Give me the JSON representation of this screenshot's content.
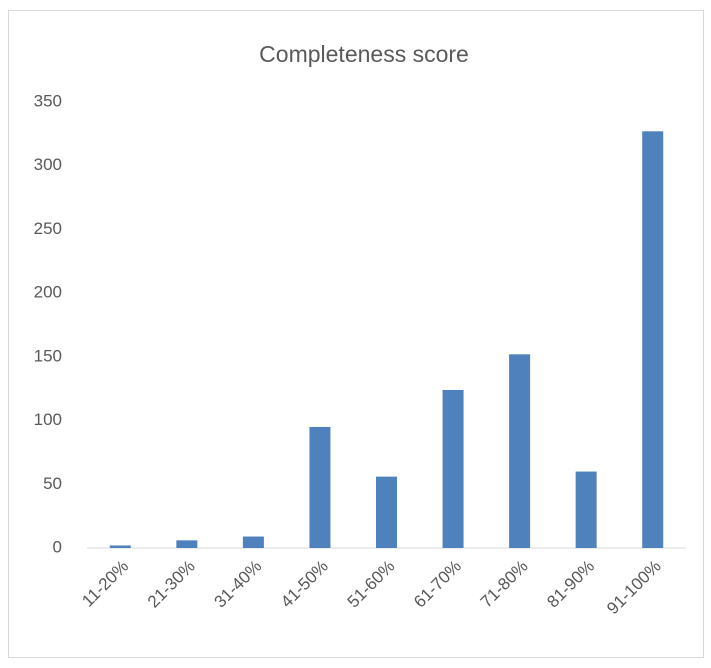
{
  "chart_data": {
    "type": "bar",
    "title": "Completeness score",
    "categories": [
      "11-20%",
      "21-30%",
      "31-40%",
      "41-50%",
      "51-60%",
      "61-70%",
      "71-80%",
      "81-90%",
      "91-100%"
    ],
    "values": [
      2,
      6,
      9,
      95,
      56,
      124,
      152,
      60,
      327
    ],
    "color": "#4f81bd",
    "ylim": [
      0,
      350
    ],
    "yticks": [
      0,
      50,
      100,
      150,
      200,
      250,
      300,
      350
    ],
    "grid": false
  }
}
